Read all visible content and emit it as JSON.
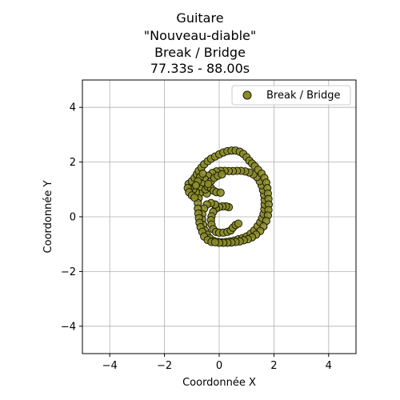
{
  "chart_data": {
    "type": "scatter",
    "title_lines": [
      "Guitare",
      "\"Nouveau-diable\"",
      "Break / Bridge",
      "77.33s - 88.00s"
    ],
    "xlabel": "Coordonnée X",
    "ylabel": "Coordonnée Y",
    "xlim": [
      -5,
      5
    ],
    "ylim": [
      -5,
      5
    ],
    "xticks": [
      -4,
      -2,
      0,
      2,
      4
    ],
    "yticks": [
      -4,
      -2,
      0,
      2,
      4
    ],
    "xtick_labels": [
      "−4",
      "−2",
      "0",
      "2",
      "4"
    ],
    "ytick_labels": [
      "−4",
      "−2",
      "0",
      "2",
      "4"
    ],
    "grid": true,
    "legend_position": "top-right",
    "series": [
      {
        "name": "Break / Bridge",
        "color": "#8b8b2a",
        "edgecolor": "#1a1a00",
        "points": [
          [
            0.35,
            0.35
          ],
          [
            0.25,
            0.38
          ],
          [
            0.12,
            0.38
          ],
          [
            0.0,
            0.36
          ],
          [
            -0.12,
            0.3
          ],
          [
            -0.22,
            0.18
          ],
          [
            -0.28,
            0.02
          ],
          [
            -0.3,
            -0.12
          ],
          [
            -0.28,
            -0.28
          ],
          [
            -0.22,
            -0.45
          ],
          [
            -0.12,
            -0.55
          ],
          [
            0.0,
            -0.58
          ],
          [
            0.15,
            -0.58
          ],
          [
            0.3,
            -0.55
          ],
          [
            0.42,
            -0.5
          ],
          [
            0.5,
            -0.4
          ],
          [
            0.6,
            -0.3
          ],
          [
            0.7,
            -0.25
          ],
          [
            -0.15,
            0.45
          ],
          [
            -0.3,
            0.5
          ],
          [
            -0.45,
            0.45
          ],
          [
            -0.55,
            0.3
          ],
          [
            -0.62,
            0.1
          ],
          [
            -0.62,
            -0.1
          ],
          [
            -0.58,
            -0.3
          ],
          [
            -0.52,
            -0.5
          ],
          [
            -0.45,
            -0.65
          ],
          [
            -0.35,
            -0.78
          ],
          [
            -0.2,
            -0.88
          ],
          [
            -0.05,
            -0.92
          ],
          [
            0.1,
            -0.93
          ],
          [
            0.25,
            -0.92
          ],
          [
            0.4,
            -0.9
          ],
          [
            0.55,
            -0.87
          ],
          [
            0.7,
            -0.82
          ],
          [
            0.85,
            -0.78
          ],
          [
            1.0,
            -0.72
          ],
          [
            1.15,
            -0.62
          ],
          [
            1.28,
            -0.5
          ],
          [
            1.4,
            -0.35
          ],
          [
            1.5,
            -0.2
          ],
          [
            1.57,
            -0.05
          ],
          [
            1.62,
            0.1
          ],
          [
            1.65,
            0.28
          ],
          [
            1.66,
            0.45
          ],
          [
            1.66,
            0.62
          ],
          [
            1.64,
            0.8
          ],
          [
            1.6,
            0.98
          ],
          [
            1.55,
            1.15
          ],
          [
            1.48,
            1.3
          ],
          [
            1.38,
            1.45
          ],
          [
            1.25,
            1.55
          ],
          [
            1.1,
            1.62
          ],
          [
            0.95,
            1.66
          ],
          [
            0.8,
            1.68
          ],
          [
            0.65,
            1.68
          ],
          [
            0.5,
            1.67
          ],
          [
            0.35,
            1.67
          ],
          [
            0.2,
            1.68
          ],
          [
            0.05,
            1.68
          ],
          [
            -0.1,
            1.66
          ],
          [
            -0.25,
            1.6
          ],
          [
            -0.4,
            1.5
          ],
          [
            -0.52,
            1.37
          ],
          [
            -0.62,
            1.2
          ],
          [
            -0.68,
            1.02
          ],
          [
            -0.72,
            0.85
          ],
          [
            -0.75,
            0.68
          ],
          [
            -0.78,
            0.5
          ],
          [
            -0.78,
            0.3
          ],
          [
            -0.76,
            0.12
          ],
          [
            -0.74,
            -0.05
          ],
          [
            -0.72,
            -0.22
          ],
          [
            -0.68,
            -0.38
          ],
          [
            -0.62,
            -0.55
          ],
          [
            -0.55,
            -0.72
          ],
          [
            -0.42,
            -0.85
          ],
          [
            -0.28,
            -0.92
          ],
          [
            -0.45,
            0.85
          ],
          [
            -0.5,
            1.0
          ],
          [
            -0.42,
            1.1
          ],
          [
            -0.3,
            1.05
          ],
          [
            -0.2,
            0.95
          ],
          [
            -0.1,
            0.9
          ],
          [
            0.05,
            0.88
          ],
          [
            -0.85,
            0.9
          ],
          [
            -0.95,
            1.0
          ],
          [
            -1.05,
            1.1
          ],
          [
            -1.12,
            1.2
          ],
          [
            -1.15,
            1.05
          ],
          [
            -1.1,
            0.9
          ],
          [
            -1.0,
            0.78
          ],
          [
            -0.9,
            0.7
          ],
          [
            -1.0,
            1.3
          ],
          [
            -0.9,
            1.42
          ],
          [
            -0.82,
            1.55
          ],
          [
            -0.75,
            1.68
          ],
          [
            -0.65,
            1.8
          ],
          [
            -0.55,
            1.92
          ],
          [
            -0.42,
            2.03
          ],
          [
            -0.3,
            2.12
          ],
          [
            -0.15,
            2.2
          ],
          [
            0.0,
            2.28
          ],
          [
            0.15,
            2.35
          ],
          [
            0.3,
            2.4
          ],
          [
            0.45,
            2.42
          ],
          [
            0.6,
            2.42
          ],
          [
            0.75,
            2.38
          ],
          [
            0.88,
            2.3
          ],
          [
            1.0,
            2.18
          ],
          [
            1.1,
            2.05
          ],
          [
            1.2,
            1.95
          ],
          [
            1.3,
            1.85
          ],
          [
            1.42,
            1.72
          ],
          [
            1.55,
            1.58
          ],
          [
            1.65,
            1.42
          ],
          [
            1.72,
            1.25
          ],
          [
            1.76,
            1.05
          ],
          [
            1.78,
            0.85
          ],
          [
            1.8,
            0.65
          ],
          [
            1.81,
            0.45
          ],
          [
            1.8,
            0.25
          ],
          [
            1.78,
            0.05
          ],
          [
            1.72,
            -0.15
          ],
          [
            1.62,
            -0.35
          ],
          [
            1.5,
            -0.52
          ],
          [
            1.35,
            -0.65
          ],
          [
            1.2,
            -0.75
          ],
          [
            1.05,
            -0.82
          ],
          [
            0.9,
            -0.86
          ],
          [
            0.75,
            -0.9
          ],
          [
            0.6,
            -0.92
          ],
          [
            0.45,
            -0.94
          ],
          [
            0.3,
            -0.95
          ],
          [
            0.15,
            -0.95
          ],
          [
            0.0,
            -0.95
          ],
          [
            -0.15,
            -0.93
          ],
          [
            -0.7,
            1.45
          ],
          [
            -0.6,
            1.58
          ],
          [
            -0.78,
            1.3
          ],
          [
            -0.85,
            1.15
          ],
          [
            -0.3,
            1.3
          ],
          [
            -0.18,
            1.42
          ],
          [
            -0.05,
            1.5
          ],
          [
            0.1,
            1.55
          ],
          [
            -0.4,
            1.2
          ]
        ]
      }
    ]
  }
}
